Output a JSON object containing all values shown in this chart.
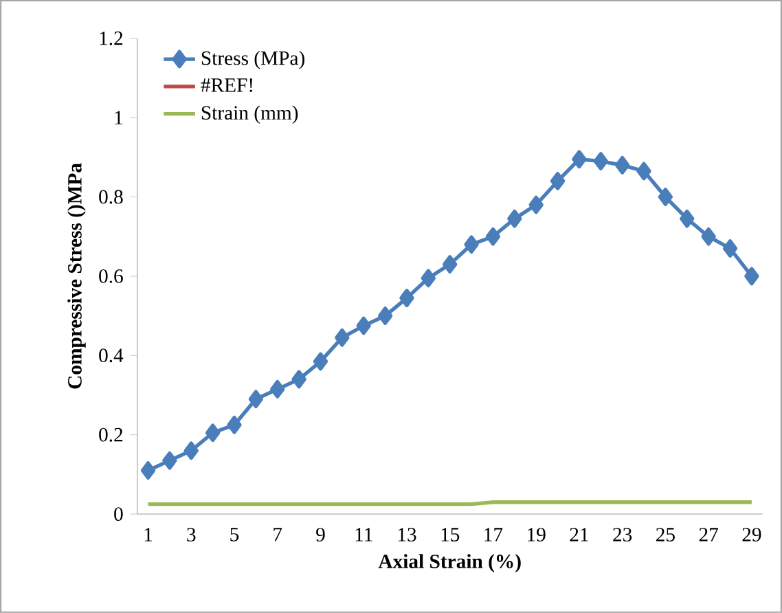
{
  "chart_data": {
    "type": "line",
    "xlabel": "Axial Strain (%)",
    "ylabel": "Compressive Stress ()MPa",
    "categories": [
      "1",
      null,
      "3",
      null,
      "5",
      null,
      "7",
      null,
      "9",
      null,
      "11",
      null,
      "13",
      null,
      "15",
      null,
      "17",
      null,
      "19",
      null,
      "21",
      null,
      "23",
      null,
      "25",
      null,
      "27",
      null,
      "29"
    ],
    "series": [
      {
        "name": "Stress (MPa)",
        "color": "#4a7ebb",
        "marker": "diamond",
        "values": [
          0.11,
          0.135,
          0.16,
          0.205,
          0.225,
          0.29,
          0.315,
          0.34,
          0.385,
          0.445,
          0.475,
          0.5,
          0.545,
          0.595,
          0.63,
          0.68,
          0.7,
          0.745,
          0.78,
          0.84,
          0.895,
          0.89,
          0.88,
          0.865,
          0.8,
          0.745,
          0.7,
          0.67,
          0.6
        ]
      },
      {
        "name": "#REF!",
        "color": "#be4b48",
        "marker": "none",
        "values": [
          null,
          null,
          null,
          null,
          null,
          null,
          null,
          null,
          null,
          null,
          null,
          null,
          null,
          null,
          null,
          null,
          null,
          null,
          null,
          null,
          null,
          null,
          null,
          null,
          null,
          null,
          null,
          null,
          null
        ]
      },
      {
        "name": "Strain (mm)",
        "color": "#98b954",
        "marker": "none",
        "values": [
          0.025,
          0.025,
          0.025,
          0.025,
          0.025,
          0.025,
          0.025,
          0.025,
          0.025,
          0.025,
          0.025,
          0.025,
          0.025,
          0.025,
          0.025,
          0.025,
          0.03,
          0.03,
          0.03,
          0.03,
          0.03,
          0.03,
          0.03,
          0.03,
          0.03,
          0.03,
          0.03,
          0.03,
          0.03
        ]
      }
    ],
    "ylim": [
      0,
      1.2
    ],
    "yticks": [
      0,
      0.2,
      0.4,
      0.6,
      0.8,
      1,
      1.2
    ],
    "grid": false,
    "legend": "top left",
    "line_style": "solid"
  }
}
